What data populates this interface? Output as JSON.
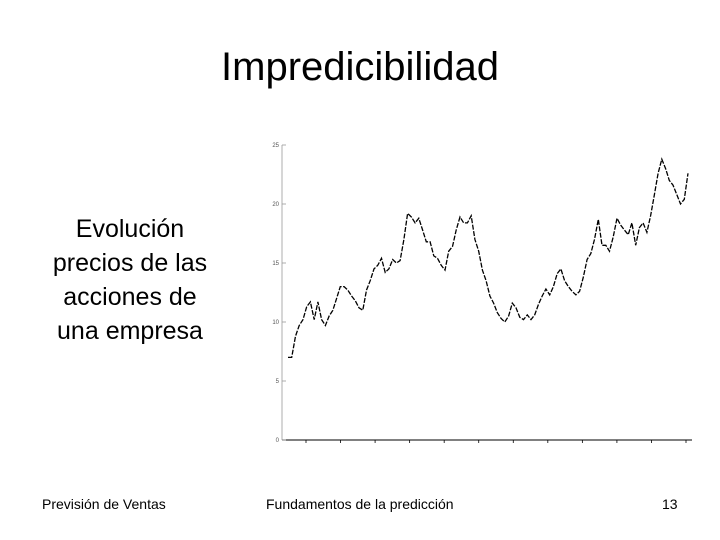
{
  "slide": {
    "title": "Impredicibilidad",
    "caption_lines": [
      "Evolución",
      "precios de las",
      "acciones de",
      "una empresa"
    ],
    "footer_left": "Previsión de Ventas",
    "footer_center": "Fundamentos de la predicción",
    "page_number": "13"
  },
  "chart_data": {
    "type": "line",
    "title": "",
    "xlabel": "",
    "ylabel": "",
    "ylim": [
      0,
      25
    ],
    "yticks": [
      0,
      5,
      10,
      15,
      20,
      25
    ],
    "ytick_labels": [
      "0",
      "5",
      "10",
      "15",
      "20",
      "25"
    ],
    "grid": false,
    "legend": "none",
    "line_style": "dashed",
    "line_color": "#000000",
    "series": [
      {
        "values": [
          7.0,
          7.0,
          8.8,
          9.7,
          10.2,
          11.3,
          11.7,
          10.2,
          11.7,
          10.2,
          9.7,
          10.5,
          11.0,
          12.0,
          13.0,
          13.0,
          12.7,
          12.2,
          11.8,
          11.2,
          11.0,
          12.7,
          13.5,
          14.5,
          14.8,
          15.4,
          14.2,
          14.5,
          15.3,
          15.0,
          15.2,
          17.0,
          19.2,
          18.9,
          18.4,
          18.8,
          17.8,
          16.8,
          16.8,
          15.6,
          15.4,
          14.8,
          14.4,
          16.0,
          16.4,
          17.8,
          18.9,
          18.4,
          18.4,
          19.0,
          17.0,
          16.0,
          14.4,
          13.5,
          12.2,
          11.6,
          10.8,
          10.3,
          10.0,
          10.5,
          11.6,
          11.2,
          10.4,
          10.2,
          10.6,
          10.2,
          10.6,
          11.5,
          12.2,
          12.8,
          12.3,
          13.0,
          14.1,
          14.5,
          13.5,
          13.0,
          12.6,
          12.3,
          12.6,
          13.8,
          15.3,
          15.8,
          17.0,
          18.7,
          16.5,
          16.5,
          16.0,
          17.2,
          18.8,
          18.2,
          17.8,
          17.4,
          18.4,
          16.5,
          18.0,
          18.4,
          17.6,
          19.0,
          20.8,
          22.6,
          23.8,
          23.0,
          22.0,
          21.6,
          20.8,
          20.0,
          20.4,
          22.6
        ]
      }
    ]
  }
}
